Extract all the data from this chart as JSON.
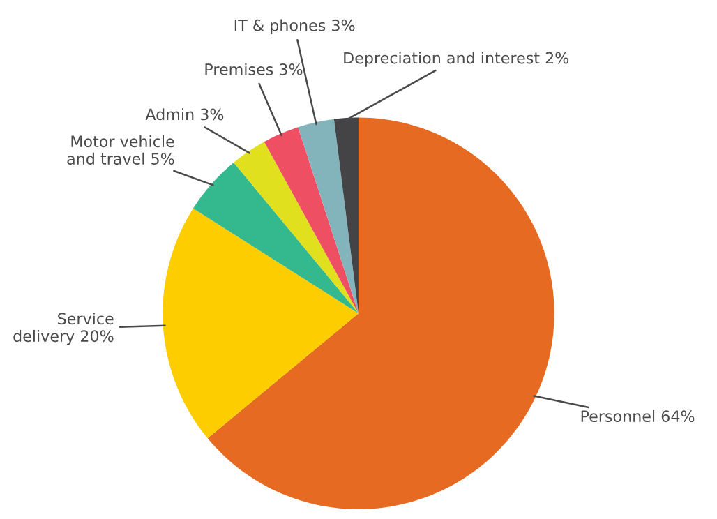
{
  "chart_data": {
    "type": "pie",
    "categories": [
      "Personnel",
      "Service\ndelivery",
      "Motor vehicle\nand travel",
      "Admin",
      "Premises",
      "IT & phones",
      "Depreciation and interest"
    ],
    "values": [
      64,
      20,
      5,
      3,
      3,
      3,
      2
    ],
    "value_labels": [
      "64%",
      "20%",
      "5%",
      "3%",
      "3%",
      "3%",
      "2%"
    ],
    "colors": [
      "#e66a22",
      "#fecd00",
      "#34b98f",
      "#e0e01e",
      "#ef4f63",
      "#83b3bb",
      "#444446"
    ],
    "legend": false
  }
}
